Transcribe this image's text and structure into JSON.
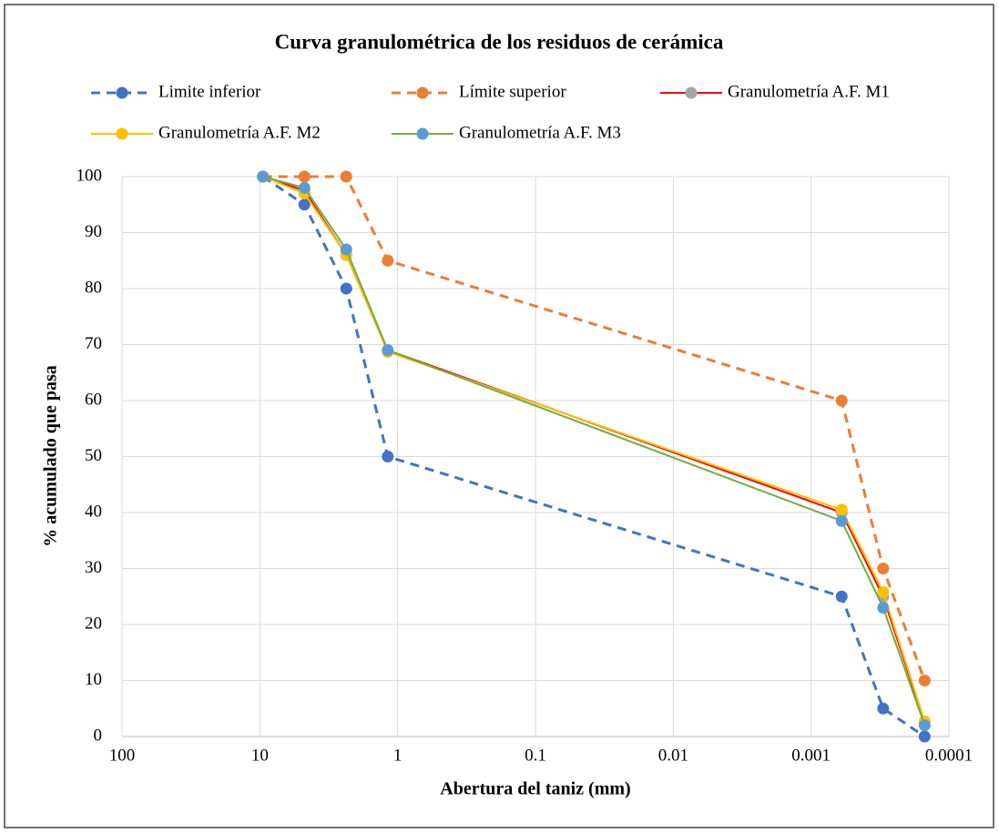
{
  "chart_data": {
    "type": "line",
    "title": "Curva granulométrica de los residuos de cerámica",
    "x_label": "Abertura del taniz (mm)",
    "y_label": "% acumulado que pasa",
    "x": [
      9.5,
      4.75,
      2.36,
      1.18,
      0.0006,
      0.0003,
      0.00015
    ],
    "series": [
      {
        "name": "Limite inferior",
        "color": "#4472c4",
        "marker_color": "#4472c4",
        "line_style": "dashed",
        "values": [
          100,
          95,
          80,
          50,
          25,
          5,
          0
        ]
      },
      {
        "name": "Límite superior",
        "color": "#ed7d31",
        "marker_color": "#ed7d31",
        "line_style": "dashed",
        "values": [
          100,
          100,
          100,
          85,
          60,
          30,
          10
        ]
      },
      {
        "name": "Granulometría A.F. M1",
        "color": "#ff0000",
        "marker_color": "#a5a5a5",
        "line_style": "solid",
        "values": [
          100,
          97.5,
          86,
          69,
          40,
          25,
          2.5
        ]
      },
      {
        "name": "Granulometría A.F. M2",
        "color": "#ffc000",
        "marker_color": "#ffc000",
        "line_style": "solid",
        "values": [
          100,
          97,
          86,
          68.7,
          40.5,
          25.8,
          2.7
        ]
      },
      {
        "name": "Granulometría A.F. M3",
        "color": "#70ad47",
        "marker_color": "#5b9bd5",
        "line_style": "solid",
        "values": [
          100,
          98,
          87,
          69,
          38.5,
          23,
          2
        ]
      }
    ],
    "xlim": [
      100,
      0.0001
    ],
    "xscale": "log",
    "xticks": [
      100,
      10,
      1,
      0.1,
      0.01,
      0.001,
      0.0001
    ],
    "ylim": [
      0,
      100
    ],
    "yticks": [
      0,
      10,
      20,
      30,
      40,
      50,
      60,
      70,
      80,
      90,
      100
    ],
    "grid": true,
    "legend": "top"
  }
}
